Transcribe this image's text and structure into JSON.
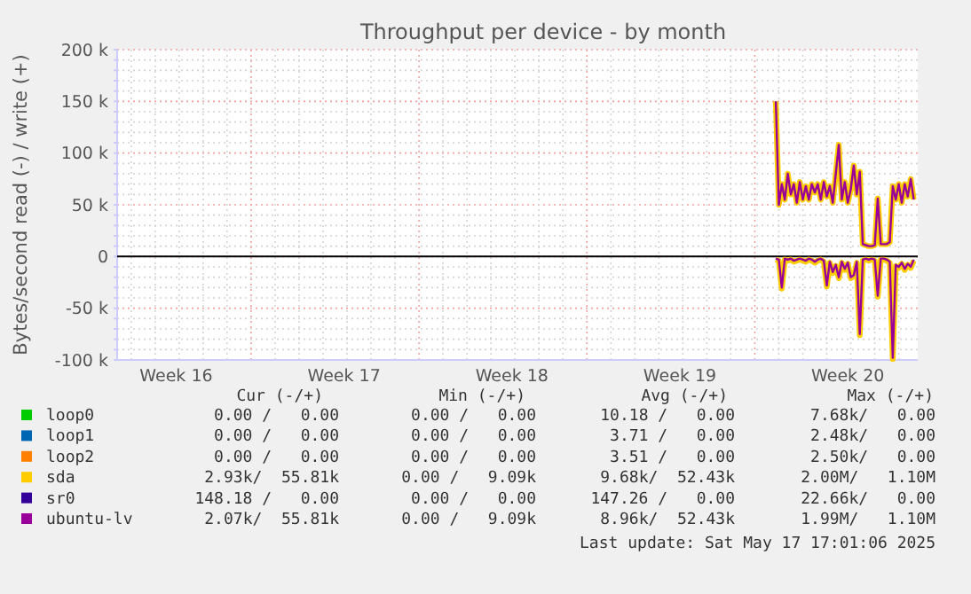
{
  "chart_data": {
    "type": "line",
    "title": "Throughput per device - by month",
    "ylabel": "Bytes/second read (-) / write (+)",
    "x": [
      "2025-05-11T21:00",
      "2025-05-12T00:00",
      "2025-05-12T03:00",
      "2025-05-12T06:00",
      "2025-05-12T09:00",
      "2025-05-12T12:00",
      "2025-05-12T15:00",
      "2025-05-12T18:00",
      "2025-05-12T21:00",
      "2025-05-13T00:00",
      "2025-05-13T03:00",
      "2025-05-13T06:00",
      "2025-05-13T09:00",
      "2025-05-13T12:00",
      "2025-05-13T15:00",
      "2025-05-13T18:00",
      "2025-05-13T21:00",
      "2025-05-14T00:00",
      "2025-05-14T03:00",
      "2025-05-14T06:00",
      "2025-05-14T09:00",
      "2025-05-14T12:00",
      "2025-05-14T15:00",
      "2025-05-14T18:00",
      "2025-05-14T21:00",
      "2025-05-15T00:00",
      "2025-05-15T03:00",
      "2025-05-15T06:00",
      "2025-05-15T09:00",
      "2025-05-15T12:00",
      "2025-05-15T15:00",
      "2025-05-15T18:00",
      "2025-05-15T21:00",
      "2025-05-16T00:00",
      "2025-05-16T03:00",
      "2025-05-16T06:00",
      "2025-05-16T09:00",
      "2025-05-16T12:00",
      "2025-05-16T15:00",
      "2025-05-16T18:00",
      "2025-05-16T21:00",
      "2025-05-17T00:00",
      "2025-05-17T03:00",
      "2025-05-17T06:00",
      "2025-05-17T09:00",
      "2025-05-17T12:00",
      "2025-05-17T15:00"
    ],
    "xlim": [
      "2025-04-14T10:00",
      "2025-05-17T19:00"
    ],
    "xticks": [
      {
        "value": "2025-04-15T00:00",
        "label": null
      },
      {
        "value": "2025-04-16T00:00",
        "label": null
      },
      {
        "value": "2025-04-16T21:00",
        "label": "Week 16"
      },
      {
        "value": "2025-04-17T00:00",
        "label": null
      },
      {
        "value": "2025-04-18T00:00",
        "label": null
      },
      {
        "value": "2025-04-19T00:00",
        "label": null
      },
      {
        "value": "2025-04-20T00:00",
        "label": null
      },
      {
        "value": "2025-04-21T00:00",
        "label": null
      },
      {
        "value": "2025-04-22T00:00",
        "label": null
      },
      {
        "value": "2025-04-23T00:00",
        "label": null
      },
      {
        "value": "2025-04-23T21:00",
        "label": "Week 17"
      },
      {
        "value": "2025-04-24T00:00",
        "label": null
      },
      {
        "value": "2025-04-25T00:00",
        "label": null
      },
      {
        "value": "2025-04-26T00:00",
        "label": null
      },
      {
        "value": "2025-04-27T00:00",
        "label": null
      },
      {
        "value": "2025-04-28T00:00",
        "label": null
      },
      {
        "value": "2025-04-29T00:00",
        "label": null
      },
      {
        "value": "2025-04-30T00:00",
        "label": null
      },
      {
        "value": "2025-04-30T21:00",
        "label": "Week 18"
      },
      {
        "value": "2025-05-01T00:00",
        "label": null
      },
      {
        "value": "2025-05-02T00:00",
        "label": null
      },
      {
        "value": "2025-05-03T00:00",
        "label": null
      },
      {
        "value": "2025-05-04T00:00",
        "label": null
      },
      {
        "value": "2025-05-05T00:00",
        "label": null
      },
      {
        "value": "2025-05-06T00:00",
        "label": null
      },
      {
        "value": "2025-05-07T00:00",
        "label": null
      },
      {
        "value": "2025-05-07T21:00",
        "label": "Week 19"
      },
      {
        "value": "2025-05-08T00:00",
        "label": null
      },
      {
        "value": "2025-05-09T00:00",
        "label": null
      },
      {
        "value": "2025-05-10T00:00",
        "label": null
      },
      {
        "value": "2025-05-11T00:00",
        "label": null
      },
      {
        "value": "2025-05-12T00:00",
        "label": null
      },
      {
        "value": "2025-05-13T00:00",
        "label": null
      },
      {
        "value": "2025-05-14T00:00",
        "label": null
      },
      {
        "value": "2025-05-14T21:00",
        "label": "Week 20"
      },
      {
        "value": "2025-05-15T00:00",
        "label": null
      },
      {
        "value": "2025-05-16T00:00",
        "label": null
      },
      {
        "value": "2025-05-17T00:00",
        "label": null
      }
    ],
    "ylim": [
      -100000,
      200000
    ],
    "yticks": [
      {
        "value": -100000,
        "label": "-100 k"
      },
      {
        "value": -90000,
        "label": null
      },
      {
        "value": -80000,
        "label": null
      },
      {
        "value": -70000,
        "label": null
      },
      {
        "value": -60000,
        "label": null
      },
      {
        "value": -50000,
        "label": "-50 k"
      },
      {
        "value": -40000,
        "label": null
      },
      {
        "value": -30000,
        "label": null
      },
      {
        "value": -20000,
        "label": null
      },
      {
        "value": -10000,
        "label": null
      },
      0,
      {
        "value": 10000,
        "label": null
      },
      {
        "value": 20000,
        "label": null
      },
      {
        "value": 30000,
        "label": null
      },
      {
        "value": 40000,
        "label": null
      },
      {
        "value": 50000,
        "label": "50 k"
      },
      {
        "value": 60000,
        "label": null
      },
      {
        "value": 70000,
        "label": null
      },
      {
        "value": 80000,
        "label": null
      },
      {
        "value": 90000,
        "label": null
      },
      {
        "value": 100000,
        "label": "100 k"
      },
      {
        "value": 110000,
        "label": null
      },
      {
        "value": 120000,
        "label": null
      },
      {
        "value": 130000,
        "label": null
      },
      {
        "value": 140000,
        "label": null
      },
      {
        "value": 150000,
        "label": "150 k"
      },
      {
        "value": 160000,
        "label": null
      },
      {
        "value": 170000,
        "label": null
      },
      {
        "value": 180000,
        "label": null
      },
      {
        "value": 190000,
        "label": null
      },
      {
        "value": 200000,
        "label": "200 k"
      }
    ],
    "grid": true,
    "legend": "bottom",
    "marker": "none",
    "line_style": "solid",
    "series": [
      {
        "name": "loop0",
        "color": "#00cc00",
        "values": [
          null,
          null,
          null,
          null,
          null,
          null,
          null,
          null,
          null,
          null,
          null,
          null,
          null,
          null,
          null,
          null,
          null,
          null,
          null,
          null,
          null,
          null,
          null,
          null,
          null,
          null,
          null,
          null,
          null,
          null,
          null,
          null,
          null,
          null,
          null,
          null,
          null,
          null,
          null,
          null,
          null,
          null,
          null,
          null,
          null,
          null,
          null
        ]
      },
      {
        "name": "loop1",
        "color": "#0066b3",
        "values": [
          null,
          null,
          null,
          null,
          null,
          null,
          null,
          null,
          null,
          null,
          null,
          null,
          null,
          null,
          null,
          null,
          null,
          null,
          null,
          null,
          null,
          null,
          null,
          null,
          null,
          null,
          null,
          null,
          null,
          null,
          null,
          null,
          null,
          null,
          null,
          null,
          null,
          null,
          null,
          null,
          null,
          null,
          null,
          null,
          null,
          null,
          null
        ]
      },
      {
        "name": "loop2",
        "color": "#ff8000",
        "values": [
          null,
          null,
          null,
          null,
          null,
          null,
          null,
          null,
          null,
          null,
          null,
          null,
          null,
          null,
          null,
          null,
          null,
          null,
          null,
          null,
          null,
          null,
          null,
          null,
          null,
          null,
          null,
          null,
          null,
          null,
          null,
          null,
          null,
          null,
          null,
          null,
          null,
          null,
          null,
          null,
          null,
          null,
          null,
          null,
          null,
          null,
          null
        ]
      },
      {
        "name": "sda",
        "color": "#ffcc00",
        "values": [
          150000,
          50000,
          70000,
          55000,
          80000,
          60000,
          70000,
          52000,
          72000,
          55000,
          68000,
          55000,
          70000,
          62000,
          70000,
          55000,
          72000,
          58000,
          68000,
          52000,
          80000,
          108000,
          55000,
          72000,
          52000,
          65000,
          88000,
          60000,
          82000,
          12000,
          11000,
          10000,
          10000,
          11000,
          56000,
          12000,
          12000,
          12000,
          14000,
          68000,
          55000,
          70000,
          52000,
          70000,
          58000,
          75000,
          55000
        ]
      },
      {
        "color": "#ffcc00",
        "values": [
          -3000,
          -4000,
          -31000,
          -3000,
          -4000,
          -3000,
          -5000,
          -4000,
          -3000,
          -4000,
          -5000,
          -3000,
          -4000,
          -6000,
          -4000,
          -3000,
          -5000,
          -29000,
          -6000,
          -16000,
          -9000,
          -21000,
          -6000,
          -13000,
          -7000,
          -21000,
          -19000,
          -6000,
          -76000,
          -4000,
          -3000,
          -4000,
          -3000,
          -4000,
          -39000,
          -3000,
          -3000,
          -4000,
          -6000,
          -99000,
          -9000,
          -11000,
          -7000,
          -13000,
          -8000,
          -11000,
          -4000
        ]
      },
      {
        "name": "sr0",
        "color": "#330099",
        "values": [
          null,
          null,
          null,
          null,
          null,
          null,
          null,
          null,
          null,
          null,
          null,
          null,
          null,
          null,
          null,
          null,
          null,
          null,
          null,
          null,
          null,
          null,
          null,
          null,
          null,
          null,
          null,
          null,
          null,
          null,
          null,
          null,
          null,
          null,
          null,
          null,
          null,
          null,
          null,
          null,
          null,
          null,
          null,
          null,
          null,
          null,
          null
        ]
      },
      {
        "name": "ubuntu-lv",
        "color": "#990099",
        "values": [
          150000,
          50000,
          70000,
          55000,
          80000,
          60000,
          70000,
          52000,
          72000,
          55000,
          68000,
          55000,
          70000,
          62000,
          70000,
          55000,
          72000,
          58000,
          68000,
          52000,
          80000,
          108000,
          55000,
          72000,
          52000,
          65000,
          88000,
          60000,
          82000,
          12000,
          11000,
          10000,
          10000,
          11000,
          56000,
          12000,
          12000,
          12000,
          14000,
          68000,
          55000,
          70000,
          52000,
          70000,
          58000,
          75000,
          55000
        ]
      },
      {
        "color": "#990099",
        "values": [
          -2000,
          -3000,
          -30000,
          -2000,
          -3000,
          -2000,
          -4000,
          -3000,
          -2000,
          -3000,
          -4000,
          -2000,
          -3000,
          -5000,
          -3000,
          -2000,
          -4000,
          -28000,
          -5000,
          -15000,
          -8000,
          -20000,
          -5000,
          -12000,
          -6000,
          -20000,
          -18000,
          -5000,
          -75000,
          -3000,
          -2000,
          -3000,
          -2000,
          -3000,
          -38000,
          -2000,
          -2000,
          -3000,
          -5000,
          -98000,
          -8000,
          -10000,
          -6000,
          -12000,
          -7000,
          -10000,
          -3000
        ]
      }
    ],
    "annotations": [
      "Cur (-/+)",
      "Min (-/+)",
      "Avg (-/+)",
      "Max (-/+)",
      "0.00 /   0.00",
      "0.00 /   0.00",
      "10.18 /   0.00",
      "7.68k/   0.00",
      "0.00 /   0.00",
      "0.00 /   0.00",
      "3.71 /   0.00",
      "2.48k/   0.00",
      "0.00 /   0.00",
      "0.00 /   0.00",
      "3.51 /   0.00",
      "2.50k/   0.00",
      "2.93k/  55.81k",
      "0.00 /   9.09k",
      "9.68k/  52.43k",
      "2.00M/   1.10M",
      "148.18 /   0.00",
      "0.00 /   0.00",
      "147.26 /   0.00",
      "22.66k/   0.00",
      "2.07k/  55.81k",
      "0.00 /   9.09k",
      "8.96k/  52.43k",
      "1.99M/   1.10M",
      "Last update: Sat May 17 17:01:06 2025"
    ]
  }
}
